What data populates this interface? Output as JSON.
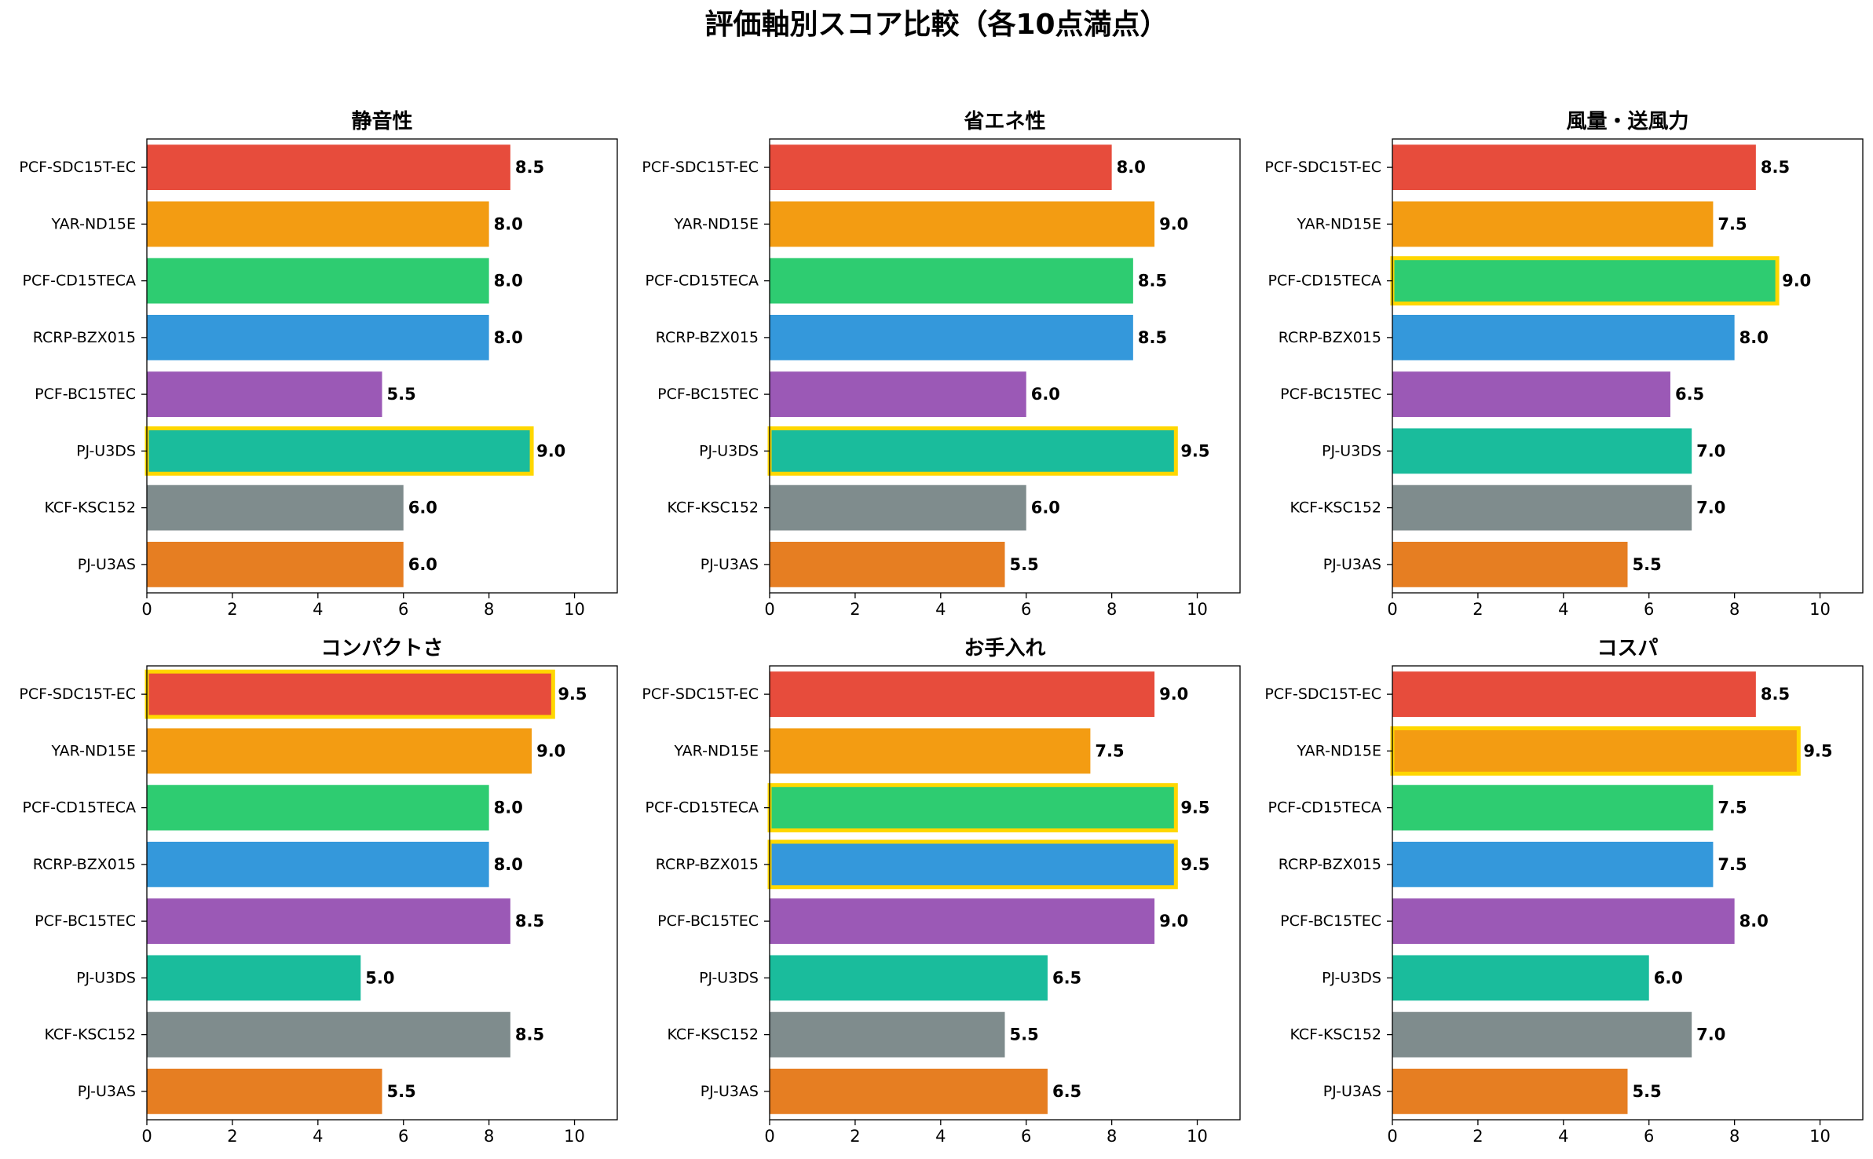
{
  "title": "評価軸別スコア比較（各10点満点）",
  "colors": {
    "highlight": "#FFD700",
    "bars": [
      "#E74C3C",
      "#F39C12",
      "#2ECC71",
      "#3498DB",
      "#9B59B6",
      "#1ABC9C",
      "#7F8C8D",
      "#E67E22"
    ]
  },
  "chart_data": [
    {
      "type": "bar",
      "orientation": "horizontal",
      "title": "静音性",
      "categories": [
        "PCF-SDC15T-EC",
        "YAR-ND15E",
        "PCF-CD15TECA",
        "RCRP-BZX015",
        "PCF-BC15TEC",
        "PJ-U3DS",
        "KCF-KSC152",
        "PJ-U3AS"
      ],
      "values": [
        8.5,
        8.0,
        8.0,
        8.0,
        5.5,
        9.0,
        6.0,
        6.0
      ],
      "value_labels": [
        "8.5",
        "8.0",
        "8.0",
        "8.0",
        "5.5",
        "9.0",
        "6.0",
        "6.0"
      ],
      "highlighted": [
        "PJ-U3DS"
      ],
      "xlim": [
        0,
        11
      ],
      "xticks": [
        "0",
        "2",
        "4",
        "6",
        "8",
        "10"
      ],
      "grid": false
    },
    {
      "type": "bar",
      "orientation": "horizontal",
      "title": "省エネ性",
      "categories": [
        "PCF-SDC15T-EC",
        "YAR-ND15E",
        "PCF-CD15TECA",
        "RCRP-BZX015",
        "PCF-BC15TEC",
        "PJ-U3DS",
        "KCF-KSC152",
        "PJ-U3AS"
      ],
      "values": [
        8.0,
        9.0,
        8.5,
        8.5,
        6.0,
        9.5,
        6.0,
        5.5
      ],
      "value_labels": [
        "8.0",
        "9.0",
        "8.5",
        "8.5",
        "6.0",
        "9.5",
        "6.0",
        "5.5"
      ],
      "highlighted": [
        "PJ-U3DS"
      ],
      "xlim": [
        0,
        11
      ],
      "xticks": [
        "0",
        "2",
        "4",
        "6",
        "8",
        "10"
      ],
      "grid": false
    },
    {
      "type": "bar",
      "orientation": "horizontal",
      "title": "風量・送風力",
      "categories": [
        "PCF-SDC15T-EC",
        "YAR-ND15E",
        "PCF-CD15TECA",
        "RCRP-BZX015",
        "PCF-BC15TEC",
        "PJ-U3DS",
        "KCF-KSC152",
        "PJ-U3AS"
      ],
      "values": [
        8.5,
        7.5,
        9.0,
        8.0,
        6.5,
        7.0,
        7.0,
        5.5
      ],
      "value_labels": [
        "8.5",
        "7.5",
        "9.0",
        "8.0",
        "6.5",
        "7.0",
        "7.0",
        "5.5"
      ],
      "highlighted": [
        "PCF-CD15TECA"
      ],
      "xlim": [
        0,
        11
      ],
      "xticks": [
        "0",
        "2",
        "4",
        "6",
        "8",
        "10"
      ],
      "grid": false
    },
    {
      "type": "bar",
      "orientation": "horizontal",
      "title": "コンパクトさ",
      "categories": [
        "PCF-SDC15T-EC",
        "YAR-ND15E",
        "PCF-CD15TECA",
        "RCRP-BZX015",
        "PCF-BC15TEC",
        "PJ-U3DS",
        "KCF-KSC152",
        "PJ-U3AS"
      ],
      "values": [
        9.5,
        9.0,
        8.0,
        8.0,
        8.5,
        5.0,
        8.5,
        5.5
      ],
      "value_labels": [
        "9.5",
        "9.0",
        "8.0",
        "8.0",
        "8.5",
        "5.0",
        "8.5",
        "5.5"
      ],
      "highlighted": [
        "PCF-SDC15T-EC"
      ],
      "xlim": [
        0,
        11
      ],
      "xticks": [
        "0",
        "2",
        "4",
        "6",
        "8",
        "10"
      ],
      "grid": false
    },
    {
      "type": "bar",
      "orientation": "horizontal",
      "title": "お手入れ",
      "categories": [
        "PCF-SDC15T-EC",
        "YAR-ND15E",
        "PCF-CD15TECA",
        "RCRP-BZX015",
        "PCF-BC15TEC",
        "PJ-U3DS",
        "KCF-KSC152",
        "PJ-U3AS"
      ],
      "values": [
        9.0,
        7.5,
        9.5,
        9.5,
        9.0,
        6.5,
        5.5,
        6.5
      ],
      "value_labels": [
        "9.0",
        "7.5",
        "9.5",
        "9.5",
        "9.0",
        "6.5",
        "5.5",
        "6.5"
      ],
      "highlighted": [
        "PCF-CD15TECA",
        "RCRP-BZX015"
      ],
      "xlim": [
        0,
        11
      ],
      "xticks": [
        "0",
        "2",
        "4",
        "6",
        "8",
        "10"
      ],
      "grid": false
    },
    {
      "type": "bar",
      "orientation": "horizontal",
      "title": "コスパ",
      "categories": [
        "PCF-SDC15T-EC",
        "YAR-ND15E",
        "PCF-CD15TECA",
        "RCRP-BZX015",
        "PCF-BC15TEC",
        "PJ-U3DS",
        "KCF-KSC152",
        "PJ-U3AS"
      ],
      "values": [
        8.5,
        9.5,
        7.5,
        7.5,
        8.0,
        6.0,
        7.0,
        5.5
      ],
      "value_labels": [
        "8.5",
        "9.5",
        "7.5",
        "7.5",
        "8.0",
        "6.0",
        "7.0",
        "5.5"
      ],
      "highlighted": [
        "YAR-ND15E"
      ],
      "xlim": [
        0,
        11
      ],
      "xticks": [
        "0",
        "2",
        "4",
        "6",
        "8",
        "10"
      ],
      "grid": false
    }
  ]
}
